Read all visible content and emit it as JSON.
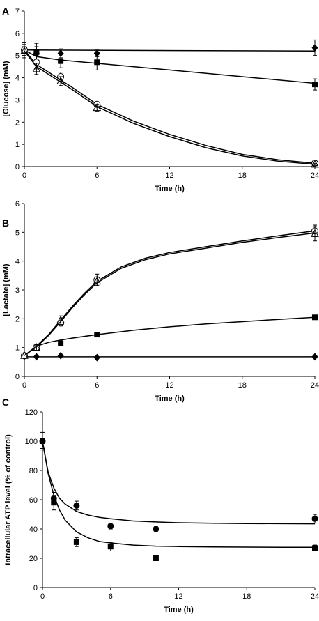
{
  "chart_data": [
    {
      "panel_label": "A",
      "type": "line",
      "xlabel": "Time (h)",
      "ylabel": "[Glucose] (mM)",
      "xlim": [
        0,
        24
      ],
      "ylim": [
        0,
        7
      ],
      "xticks": [
        0,
        6,
        12,
        18,
        24
      ],
      "yticks": [
        0,
        1,
        2,
        3,
        4,
        5,
        6,
        7
      ],
      "grid": false,
      "legend": false,
      "series": [
        {
          "marker": "diamond-filled",
          "x": [
            0,
            1,
            3,
            6,
            24
          ],
          "y": [
            5.25,
            5.1,
            5.1,
            5.1,
            5.35
          ],
          "err": [
            0.15,
            0.3,
            0.2,
            0.15,
            0.35
          ],
          "fit": {
            "x": [
              0,
              24
            ],
            "y": [
              5.25,
              5.2
            ]
          }
        },
        {
          "marker": "square-filled",
          "x": [
            0,
            1,
            3,
            6,
            24
          ],
          "y": [
            5.25,
            5.15,
            4.75,
            4.7,
            3.7
          ],
          "err": [
            0.35,
            0.4,
            0.3,
            0.35,
            0.25
          ],
          "fit": {
            "x": [
              0,
              1,
              3,
              6,
              12,
              18,
              24
            ],
            "y": [
              5.25,
              4.95,
              4.8,
              4.65,
              4.35,
              4.05,
              3.75
            ]
          }
        },
        {
          "marker": "circle-open",
          "x": [
            0,
            1,
            3,
            6,
            24
          ],
          "y": [
            5.25,
            4.7,
            4.05,
            2.8,
            0.15
          ],
          "err": [
            0.25,
            0.3,
            0.2,
            0.1,
            0.05
          ],
          "fit": {
            "x": [
              0,
              1,
              2,
              3,
              4,
              6,
              9,
              12,
              15,
              18,
              21,
              24
            ],
            "y": [
              5.25,
              4.6,
              4.25,
              3.9,
              3.55,
              2.8,
              2.05,
              1.45,
              0.95,
              0.55,
              0.3,
              0.15
            ]
          }
        },
        {
          "marker": "triangle-open",
          "x": [
            0,
            1,
            3,
            6,
            24
          ],
          "y": [
            5.2,
            4.4,
            3.85,
            2.65,
            0.1
          ],
          "err": [
            0.2,
            0.25,
            0.2,
            0.15,
            0.05
          ],
          "fit": {
            "x": [
              0,
              1,
              2,
              3,
              4,
              6,
              9,
              12,
              15,
              18,
              21,
              24
            ],
            "y": [
              5.2,
              4.5,
              4.15,
              3.8,
              3.45,
              2.7,
              1.95,
              1.35,
              0.85,
              0.48,
              0.24,
              0.1
            ]
          }
        }
      ]
    },
    {
      "panel_label": "B",
      "type": "line",
      "xlabel": "Time (h)",
      "ylabel": "[Lactate] (mM)",
      "xlim": [
        0,
        24
      ],
      "ylim": [
        0,
        6
      ],
      "xticks": [
        0,
        6,
        12,
        18,
        24
      ],
      "yticks": [
        0,
        1,
        2,
        3,
        4,
        5,
        6
      ],
      "grid": false,
      "legend": false,
      "series": [
        {
          "marker": "diamond-filled",
          "x": [
            0,
            1,
            3,
            6,
            24
          ],
          "y": [
            0.7,
            0.68,
            0.72,
            0.65,
            0.68
          ],
          "err": [
            0,
            0,
            0,
            0,
            0
          ],
          "fit": {
            "x": [
              0,
              24
            ],
            "y": [
              0.68,
              0.68
            ]
          }
        },
        {
          "marker": "square-filled",
          "x": [
            0,
            1,
            3,
            6,
            24
          ],
          "y": [
            0.72,
            1.0,
            1.15,
            1.45,
            2.05
          ],
          "err": [
            0,
            0.05,
            0.05,
            0.05,
            0.05
          ],
          "fit": {
            "x": [
              0,
              1,
              2,
              3,
              4,
              6,
              9,
              12,
              15,
              18,
              21,
              24
            ],
            "y": [
              0.72,
              1.05,
              1.18,
              1.26,
              1.33,
              1.45,
              1.6,
              1.72,
              1.82,
              1.9,
              1.98,
              2.05
            ]
          }
        },
        {
          "marker": "circle-open",
          "x": [
            0,
            1,
            3,
            6,
            24
          ],
          "y": [
            0.72,
            1.0,
            1.85,
            3.35,
            5.05
          ],
          "err": [
            0,
            0.1,
            0.1,
            0.2,
            0.2
          ],
          "fit": {
            "x": [
              0,
              1,
              2,
              3,
              4,
              5,
              6,
              8,
              10,
              12,
              15,
              18,
              21,
              24
            ],
            "y": [
              0.72,
              1.05,
              1.45,
              1.95,
              2.45,
              2.9,
              3.3,
              3.8,
              4.1,
              4.3,
              4.5,
              4.7,
              4.88,
              5.05
            ]
          }
        },
        {
          "marker": "triangle-open",
          "x": [
            0,
            1,
            3,
            6,
            24
          ],
          "y": [
            0.72,
            1.0,
            1.95,
            3.3,
            4.95
          ],
          "err": [
            0,
            0.1,
            0.15,
            0.15,
            0.25
          ],
          "fit": {
            "x": [
              0,
              1,
              2,
              3,
              4,
              5,
              6,
              8,
              10,
              12,
              15,
              18,
              21,
              24
            ],
            "y": [
              0.72,
              1.02,
              1.42,
              1.9,
              2.4,
              2.85,
              3.25,
              3.75,
              4.05,
              4.25,
              4.45,
              4.65,
              4.82,
              4.98
            ]
          }
        }
      ]
    },
    {
      "panel_label": "C",
      "type": "line",
      "xlabel": "Time (h)",
      "ylabel": "Intracellular ATP level (% of control)",
      "xlim": [
        0,
        24
      ],
      "ylim": [
        0,
        120
      ],
      "xticks": [
        0,
        6,
        12,
        18,
        24
      ],
      "yticks": [
        0,
        20,
        40,
        60,
        80,
        100,
        120
      ],
      "grid": false,
      "legend": false,
      "series": [
        {
          "marker": "circle-filled",
          "x": [
            0,
            1,
            3,
            6,
            10,
            24
          ],
          "y": [
            100,
            61,
            56,
            42,
            40,
            47
          ],
          "err": [
            6,
            4,
            3,
            2,
            2,
            3
          ],
          "fit": {
            "x": [
              0,
              0.5,
              1,
              1.5,
              2,
              3,
              4,
              5,
              6,
              8,
              10,
              12,
              15,
              18,
              21,
              24
            ],
            "y": [
              100,
              79,
              68,
              61,
              57,
              52,
              49.5,
              48,
              47,
              45.5,
              44.8,
              44.3,
              43.9,
              43.7,
              43.6,
              43.5
            ]
          }
        },
        {
          "marker": "square-filled",
          "x": [
            0,
            1,
            3,
            6,
            10,
            24
          ],
          "y": [
            100,
            58,
            31,
            28,
            20,
            27
          ],
          "err": [
            5,
            5,
            3,
            3,
            1,
            2
          ],
          "fit": {
            "x": [
              0,
              0.5,
              1,
              1.5,
              2,
              3,
              4,
              5,
              6,
              8,
              10,
              12,
              15,
              18,
              21,
              24
            ],
            "y": [
              100,
              78,
              63,
              53,
              46,
              38,
              34,
              31.5,
              30.5,
              29,
              28.3,
              28,
              27.7,
              27.6,
              27.5,
              27.5
            ]
          }
        }
      ]
    }
  ]
}
